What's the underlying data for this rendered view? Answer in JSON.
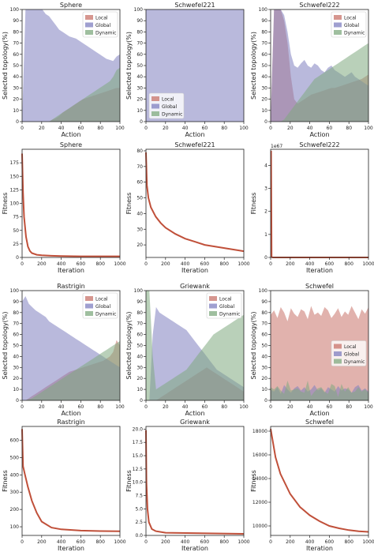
{
  "chart_data": [
    {
      "type": "area",
      "title": "Sphere",
      "xlabel": "Action",
      "ylabel": "Selected topology(%)",
      "xlim": [
        0,
        100
      ],
      "ylim": [
        0,
        100
      ],
      "xticks": [
        0,
        20,
        40,
        60,
        80,
        100
      ],
      "yticks": [
        0,
        10,
        20,
        30,
        40,
        50,
        60,
        70,
        80,
        90,
        100
      ],
      "legend": "top-right",
      "series": [
        {
          "name": "Local",
          "color": "#c8736a",
          "values": [
            0,
            0,
            0,
            0,
            0,
            0,
            0,
            0,
            0,
            2,
            3,
            5,
            8,
            10,
            12,
            14,
            16,
            18,
            20,
            21,
            22,
            23,
            24,
            25,
            26,
            27,
            28,
            29,
            30,
            30
          ]
        },
        {
          "name": "Global",
          "color": "#7f7fc0",
          "values": [
            0,
            100,
            100,
            100,
            100,
            100,
            100,
            96,
            94,
            90,
            86,
            82,
            80,
            78,
            76,
            75,
            74,
            72,
            70,
            68,
            66,
            64,
            62,
            60,
            58,
            56,
            55,
            54,
            58,
            60
          ]
        },
        {
          "name": "Dynamic",
          "color": "#7faa7f",
          "values": [
            0,
            0,
            0,
            0,
            0,
            0,
            0,
            0,
            0,
            2,
            4,
            6,
            8,
            10,
            12,
            14,
            16,
            18,
            20,
            22,
            24,
            26,
            28,
            30,
            32,
            34,
            36,
            40,
            46,
            48
          ]
        }
      ]
    },
    {
      "type": "area",
      "title": "Schwefel221",
      "xlabel": "Action",
      "ylabel": "Selected topology(%)",
      "xlim": [
        0,
        100
      ],
      "ylim": [
        0,
        100
      ],
      "xticks": [
        0,
        20,
        40,
        60,
        80,
        100
      ],
      "yticks": [
        0,
        10,
        20,
        30,
        40,
        50,
        60,
        70,
        80,
        90,
        100
      ],
      "legend": "bottom-left",
      "series": [
        {
          "name": "Local",
          "color": "#c8736a",
          "values": [
            0,
            0,
            0,
            0,
            0,
            0,
            0,
            0,
            0,
            0,
            0,
            0
          ]
        },
        {
          "name": "Global",
          "color": "#7f7fc0",
          "values": [
            100,
            100,
            100,
            100,
            100,
            100,
            100,
            100,
            100,
            100,
            100,
            100
          ]
        },
        {
          "name": "Dynamic",
          "color": "#7faa7f",
          "values": [
            0,
            0,
            0,
            0,
            0,
            0,
            0,
            0,
            0,
            0,
            0,
            0
          ]
        }
      ]
    },
    {
      "type": "area",
      "title": "Schwefel222",
      "xlabel": "Action",
      "ylabel": "Selected topology(%)",
      "xlim": [
        0,
        100
      ],
      "ylim": [
        0,
        100
      ],
      "xticks": [
        0,
        20,
        40,
        60,
        80,
        100
      ],
      "yticks": [
        0,
        10,
        20,
        30,
        40,
        50,
        60,
        70,
        80,
        90,
        100
      ],
      "legend": "top-right",
      "series": [
        {
          "name": "Local",
          "color": "#c8736a",
          "values": [
            0,
            100,
            100,
            100,
            90,
            70,
            40,
            20,
            16,
            18,
            20,
            22,
            24,
            25,
            26,
            27,
            28,
            29,
            30,
            30,
            31,
            32,
            33,
            34,
            35,
            36,
            37,
            38,
            40,
            42
          ]
        },
        {
          "name": "Global",
          "color": "#7f7fc0",
          "values": [
            0,
            100,
            100,
            100,
            95,
            80,
            60,
            50,
            48,
            52,
            55,
            50,
            48,
            52,
            50,
            46,
            44,
            48,
            50,
            46,
            44,
            42,
            40,
            42,
            44,
            40,
            38,
            36,
            34,
            32
          ]
        },
        {
          "name": "Dynamic",
          "color": "#7faa7f",
          "values": [
            0,
            0,
            0,
            0,
            2,
            6,
            10,
            14,
            18,
            22,
            26,
            30,
            34,
            38,
            40,
            42,
            44,
            46,
            48,
            50,
            52,
            54,
            56,
            58,
            60,
            62,
            64,
            66,
            68,
            70
          ]
        }
      ]
    },
    {
      "type": "line",
      "title": "Sphere",
      "xlabel": "Iteration",
      "ylabel": "Fitness",
      "xlim": [
        0,
        1000
      ],
      "ylim": [
        0,
        200
      ],
      "xticks": [
        0,
        200,
        400,
        600,
        800,
        1000
      ],
      "yticks": [
        0,
        25,
        50,
        75,
        100,
        125,
        150,
        175
      ],
      "x": [
        0,
        10,
        20,
        40,
        60,
        80,
        100,
        150,
        200,
        300,
        400,
        600,
        800,
        1000
      ],
      "values": [
        192,
        120,
        75,
        38,
        20,
        12,
        8,
        5,
        4,
        3,
        2.5,
        2,
        2,
        2
      ]
    },
    {
      "type": "line",
      "title": "Schwefel221",
      "xlabel": "Iteration",
      "ylabel": "Fitness",
      "xlim": [
        0,
        1000
      ],
      "ylim": [
        12,
        81
      ],
      "xticks": [
        0,
        200,
        400,
        600,
        800,
        1000
      ],
      "yticks": [
        20,
        30,
        40,
        50,
        60,
        70,
        80
      ],
      "x": [
        0,
        10,
        25,
        50,
        100,
        150,
        200,
        300,
        400,
        500,
        600,
        700,
        800,
        900,
        1000
      ],
      "values": [
        79,
        58,
        50,
        44,
        38,
        34,
        31,
        27,
        24,
        22,
        20,
        19,
        18,
        17,
        16
      ]
    },
    {
      "type": "line",
      "title": "Schwefel222",
      "xlabel": "Iteration",
      "ylabel": "Fitness",
      "xlim": [
        0,
        1000
      ],
      "ylim": [
        0,
        4.7
      ],
      "xticks": [
        0,
        200,
        400,
        600,
        800,
        1000
      ],
      "yticks": [
        0,
        1,
        2,
        3,
        4
      ],
      "offset_text": "1e67",
      "x": [
        0,
        5,
        10,
        20,
        1000
      ],
      "values": [
        4.6,
        4.6,
        0.02,
        0,
        0
      ]
    },
    {
      "type": "area",
      "title": "Rastrigin",
      "xlabel": "Action",
      "ylabel": "Selected topology(%)",
      "xlim": [
        0,
        100
      ],
      "ylim": [
        0,
        100
      ],
      "xticks": [
        0,
        20,
        40,
        60,
        80,
        100
      ],
      "yticks": [
        0,
        10,
        20,
        30,
        40,
        50,
        60,
        70,
        80,
        90,
        100
      ],
      "legend": "top-right",
      "series": [
        {
          "name": "Local",
          "color": "#c8736a",
          "values": [
            0,
            0,
            2,
            4,
            6,
            8,
            10,
            12,
            14,
            16,
            18,
            20,
            22,
            24,
            26,
            27,
            28,
            29,
            30,
            31,
            32,
            33,
            34,
            35,
            36,
            38,
            40,
            44,
            55,
            50
          ]
        },
        {
          "name": "Global",
          "color": "#7f7fc0",
          "values": [
            90,
            95,
            88,
            85,
            82,
            80,
            78,
            76,
            72,
            70,
            68,
            66,
            64,
            62,
            60,
            58,
            56,
            54,
            52,
            50,
            48,
            46,
            44,
            42,
            40,
            38,
            36,
            34,
            32,
            30
          ]
        },
        {
          "name": "Dynamic",
          "color": "#7faa7f",
          "values": [
            0,
            0,
            1,
            2,
            4,
            6,
            8,
            10,
            12,
            14,
            16,
            18,
            20,
            22,
            24,
            26,
            28,
            30,
            32,
            34,
            36,
            38,
            40,
            42,
            44,
            46,
            48,
            50,
            52,
            54
          ]
        }
      ]
    },
    {
      "type": "area",
      "title": "Griewank",
      "xlabel": "Action",
      "ylabel": "Selected topology(%)",
      "xlim": [
        0,
        100
      ],
      "ylim": [
        0,
        100
      ],
      "xticks": [
        0,
        20,
        40,
        60,
        80,
        100
      ],
      "yticks": [
        0,
        10,
        20,
        30,
        40,
        50,
        60,
        70,
        80,
        90,
        100
      ],
      "legend": "top-right",
      "series": [
        {
          "name": "Local",
          "color": "#c8736a",
          "values": [
            0,
            0,
            0,
            0,
            2,
            4,
            6,
            8,
            10,
            12,
            14,
            16,
            18,
            20,
            22,
            24,
            26,
            28,
            30,
            28,
            26,
            24,
            22,
            20,
            18,
            16,
            14,
            12,
            10,
            8
          ]
        },
        {
          "name": "Global",
          "color": "#7f7fc0",
          "values": [
            0,
            0,
            60,
            85,
            80,
            78,
            76,
            74,
            72,
            70,
            68,
            66,
            64,
            60,
            56,
            52,
            48,
            44,
            40,
            36,
            32,
            28,
            26,
            24,
            22,
            20,
            18,
            16,
            14,
            12
          ]
        },
        {
          "name": "Dynamic",
          "color": "#7faa7f",
          "values": [
            100,
            100,
            40,
            10,
            12,
            14,
            16,
            18,
            20,
            22,
            24,
            26,
            28,
            32,
            36,
            40,
            44,
            48,
            52,
            56,
            60,
            62,
            64,
            66,
            68,
            70,
            72,
            74,
            76,
            78
          ]
        }
      ]
    },
    {
      "type": "area",
      "title": "Schwefel",
      "xlabel": "Action",
      "ylabel": "Selected topology(%)",
      "xlim": [
        0,
        100
      ],
      "ylim": [
        0,
        100
      ],
      "xticks": [
        0,
        20,
        40,
        60,
        80,
        100
      ],
      "yticks": [
        0,
        10,
        20,
        30,
        40,
        50,
        60,
        70,
        80,
        90,
        100
      ],
      "legend": "center-right",
      "series": [
        {
          "name": "Local",
          "color": "#c8736a",
          "values": [
            78,
            82,
            75,
            85,
            80,
            72,
            84,
            79,
            76,
            83,
            81,
            74,
            86,
            78,
            80,
            77,
            85,
            82,
            75,
            79,
            84,
            76,
            81,
            78,
            86,
            80,
            74,
            83,
            79,
            85
          ]
        },
        {
          "name": "Global",
          "color": "#7f7fc0",
          "values": [
            10,
            8,
            12,
            6,
            14,
            10,
            7,
            11,
            13,
            9,
            12,
            8,
            10,
            14,
            9,
            11,
            7,
            12,
            10,
            8,
            13,
            9,
            11,
            10,
            7,
            12,
            14,
            9,
            11,
            8
          ]
        },
        {
          "name": "Dynamic",
          "color": "#7faa7f",
          "values": [
            12,
            10,
            13,
            9,
            6,
            18,
            9,
            10,
            11,
            8,
            7,
            18,
            4,
            8,
            11,
            12,
            8,
            6,
            15,
            13,
            3,
            15,
            8,
            12,
            7,
            8,
            12,
            8,
            10,
            7
          ]
        }
      ]
    },
    {
      "type": "line",
      "title": "Rastrigin",
      "xlabel": "Iteration",
      "ylabel": "Fitness",
      "xlim": [
        0,
        1000
      ],
      "ylim": [
        50,
        680
      ],
      "xticks": [
        0,
        200,
        400,
        600,
        800,
        1000
      ],
      "yticks": [
        100,
        200,
        300,
        400,
        500,
        600
      ],
      "x": [
        0,
        10,
        30,
        60,
        100,
        150,
        200,
        300,
        400,
        600,
        800,
        1000
      ],
      "values": [
        665,
        450,
        400,
        330,
        250,
        180,
        130,
        95,
        85,
        78,
        75,
        74
      ]
    },
    {
      "type": "line",
      "title": "Griewank",
      "xlabel": "Iteration",
      "ylabel": "Fitness",
      "xlim": [
        0,
        1000
      ],
      "ylim": [
        0,
        20.5
      ],
      "xticks": [
        0,
        200,
        400,
        600,
        800,
        1000
      ],
      "yticks": [
        0.0,
        2.5,
        5.0,
        7.5,
        10.0,
        12.5,
        15.0,
        17.5,
        20.0
      ],
      "x": [
        0,
        5,
        15,
        30,
        60,
        100,
        200,
        1000
      ],
      "values": [
        19.8,
        10,
        5,
        2.5,
        1.2,
        0.8,
        0.5,
        0.3
      ]
    },
    {
      "type": "line",
      "title": "Schwefel",
      "xlabel": "Iteration",
      "ylabel": "Fitness",
      "xlim": [
        0,
        1000
      ],
      "ylim": [
        9200,
        18400
      ],
      "xticks": [
        0,
        200,
        400,
        600,
        800,
        1000
      ],
      "yticks": [
        10000,
        12000,
        14000,
        16000,
        18000
      ],
      "x": [
        0,
        50,
        100,
        200,
        300,
        400,
        500,
        600,
        700,
        800,
        900,
        1000
      ],
      "values": [
        18200,
        15800,
        14400,
        12700,
        11600,
        10900,
        10400,
        10000,
        9800,
        9650,
        9550,
        9500
      ]
    }
  ]
}
